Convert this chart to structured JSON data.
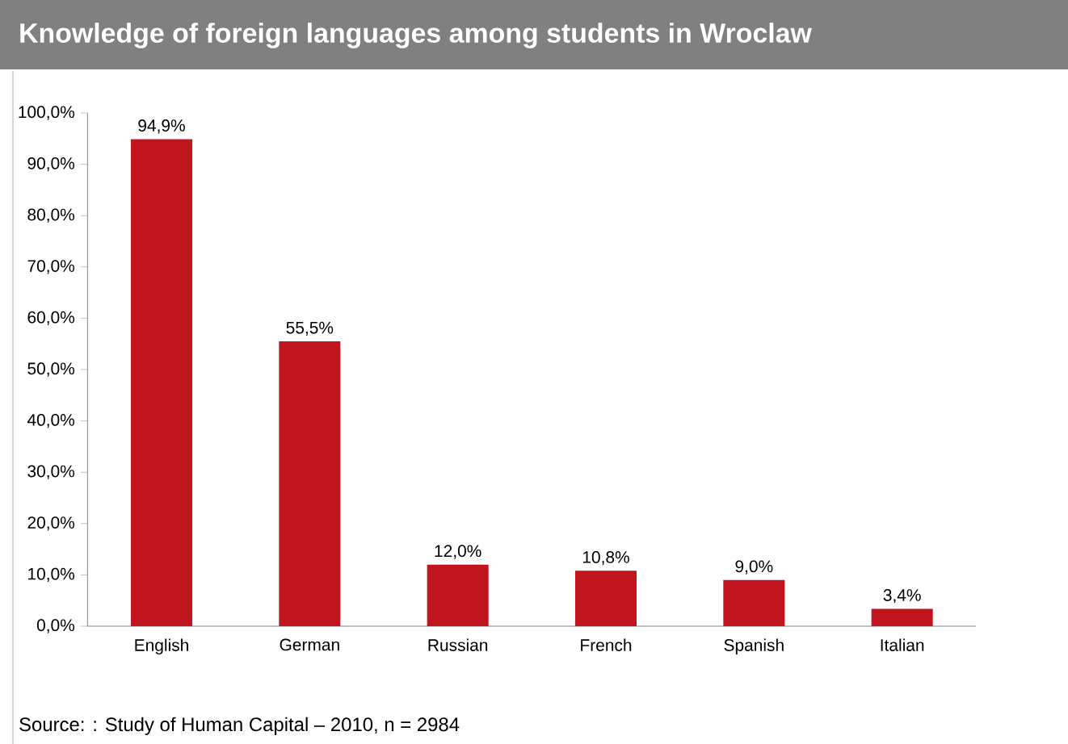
{
  "chart_data": {
    "type": "bar",
    "title": "Knowledge of foreign languages among students in Wroclaw",
    "categories": [
      "English",
      "German",
      "Russian",
      "French",
      "Spanish",
      "Italian"
    ],
    "values": [
      94.9,
      55.5,
      12.0,
      10.8,
      9.0,
      3.4
    ],
    "value_labels": [
      "94,9%",
      "55,5%",
      "12,0%",
      "10,8%",
      "9,0%",
      "3,4%"
    ],
    "color": "#c0141e",
    "ylim": [
      0,
      100
    ],
    "yticks": [
      {
        "value": 0,
        "label": "0,0%"
      },
      {
        "value": 10,
        "label": "10,0%"
      },
      {
        "value": 20,
        "label": "20,0%"
      },
      {
        "value": 30,
        "label": "30,0%"
      },
      {
        "value": 40,
        "label": "40,0%"
      },
      {
        "value": 50,
        "label": "50,0%"
      },
      {
        "value": 60,
        "label": "60,0%"
      },
      {
        "value": 70,
        "label": "70,0%"
      },
      {
        "value": 80,
        "label": "80,0%"
      },
      {
        "value": 90,
        "label": "90,0%"
      },
      {
        "value": 100,
        "label": "100,0%"
      }
    ],
    "annotations": [
      "Source: : Study of Human Capital – 2010, n = 2984"
    ]
  }
}
